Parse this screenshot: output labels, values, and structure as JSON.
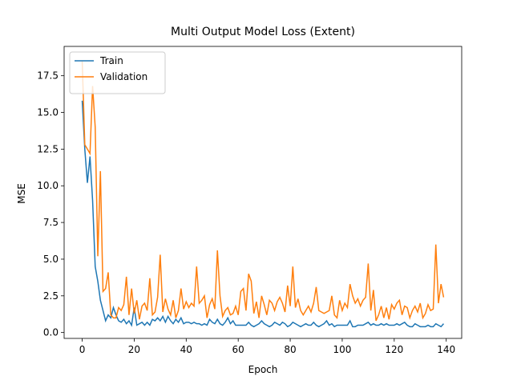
{
  "chart_data": {
    "type": "line",
    "title": "Multi Output Model Loss (Extent)",
    "x_label": "Epoch",
    "y_label": "MSE",
    "x": [
      0,
      1,
      2,
      3,
      4,
      5,
      6,
      7,
      8,
      9,
      10,
      11,
      12,
      13,
      14,
      15,
      16,
      17,
      18,
      19,
      20,
      21,
      22,
      23,
      24,
      25,
      26,
      27,
      28,
      29,
      30,
      31,
      32,
      33,
      34,
      35,
      36,
      37,
      38,
      39,
      40,
      41,
      42,
      43,
      44,
      45,
      46,
      47,
      48,
      49,
      50,
      51,
      52,
      53,
      54,
      55,
      56,
      57,
      58,
      59,
      60,
      61,
      62,
      63,
      64,
      65,
      66,
      67,
      68,
      69,
      70,
      71,
      72,
      73,
      74,
      75,
      76,
      77,
      78,
      79,
      80,
      81,
      82,
      83,
      84,
      85,
      86,
      87,
      88,
      89,
      90,
      91,
      92,
      93,
      94,
      95,
      96,
      97,
      98,
      99,
      100,
      101,
      102,
      103,
      104,
      105,
      106,
      107,
      108,
      109,
      110,
      111,
      112,
      113,
      114,
      115,
      116,
      117,
      118,
      119,
      120,
      121,
      122,
      123,
      124,
      125,
      126,
      127,
      128,
      129,
      130,
      131,
      132,
      133,
      134,
      135,
      136,
      137,
      138,
      139
    ],
    "series": [
      {
        "name": "Train",
        "color": "#1f77b4",
        "values": [
          15.8,
          12.5,
          10.2,
          12.0,
          9.0,
          4.5,
          3.5,
          2.2,
          1.5,
          0.8,
          1.2,
          1.0,
          1.7,
          1.2,
          0.8,
          0.7,
          0.9,
          0.6,
          0.8,
          0.5,
          1.7,
          0.5,
          0.6,
          0.7,
          0.5,
          0.7,
          0.5,
          0.9,
          0.8,
          1.0,
          0.8,
          1.1,
          0.7,
          1.1,
          0.8,
          0.6,
          0.9,
          0.7,
          1.0,
          0.6,
          0.7,
          0.7,
          0.6,
          0.7,
          0.6,
          0.6,
          0.5,
          0.6,
          0.5,
          0.9,
          0.7,
          0.6,
          0.9,
          0.6,
          0.5,
          0.7,
          1.0,
          0.6,
          0.8,
          0.5,
          0.5,
          0.5,
          0.5,
          0.5,
          0.7,
          0.5,
          0.4,
          0.5,
          0.6,
          0.8,
          0.6,
          0.5,
          0.4,
          0.5,
          0.7,
          0.6,
          0.5,
          0.7,
          0.6,
          0.4,
          0.5,
          0.7,
          0.6,
          0.5,
          0.4,
          0.5,
          0.6,
          0.5,
          0.5,
          0.7,
          0.5,
          0.4,
          0.5,
          0.6,
          0.8,
          0.5,
          0.6,
          0.4,
          0.5,
          0.5,
          0.5,
          0.5,
          0.5,
          0.8,
          0.4,
          0.4,
          0.5,
          0.5,
          0.5,
          0.6,
          0.7,
          0.5,
          0.6,
          0.5,
          0.5,
          0.6,
          0.5,
          0.6,
          0.5,
          0.5,
          0.5,
          0.6,
          0.5,
          0.6,
          0.7,
          0.5,
          0.4,
          0.4,
          0.6,
          0.5,
          0.4,
          0.4,
          0.4,
          0.5,
          0.4,
          0.4,
          0.6,
          0.5,
          0.4,
          0.6
        ]
      },
      {
        "name": "Validation",
        "color": "#ff7f0e",
        "values": [
          18.5,
          12.8,
          12.5,
          12.2,
          16.8,
          14.0,
          5.2,
          11.0,
          2.8,
          3.0,
          4.1,
          1.2,
          1.0,
          1.0,
          1.7,
          1.5,
          1.9,
          3.8,
          1.2,
          3.0,
          1.3,
          2.2,
          0.9,
          1.8,
          2.0,
          1.5,
          3.7,
          1.2,
          1.4,
          2.4,
          5.3,
          1.4,
          2.3,
          1.6,
          1.2,
          2.2,
          1.0,
          1.5,
          3.0,
          1.6,
          2.1,
          1.7,
          2.0,
          1.8,
          4.5,
          2.0,
          2.2,
          2.5,
          1.0,
          1.9,
          2.3,
          1.6,
          5.6,
          2.5,
          1.1,
          1.5,
          1.7,
          1.2,
          1.3,
          1.8,
          1.2,
          2.8,
          3.0,
          1.5,
          4.0,
          3.5,
          1.3,
          2.1,
          1.0,
          2.5,
          1.9,
          1.2,
          2.2,
          2.0,
          1.5,
          2.1,
          2.4,
          2.0,
          1.4,
          3.2,
          1.8,
          4.5,
          1.7,
          2.3,
          1.5,
          1.2,
          1.5,
          1.8,
          1.4,
          2.0,
          3.1,
          1.5,
          1.4,
          1.3,
          1.4,
          1.5,
          2.5,
          1.2,
          1.0,
          2.2,
          1.5,
          2.0,
          1.7,
          3.3,
          2.5,
          2.0,
          2.3,
          1.8,
          2.2,
          2.4,
          4.7,
          1.5,
          2.9,
          0.8,
          1.2,
          1.8,
          1.0,
          1.7,
          0.9,
          1.9,
          1.6,
          2.0,
          2.2,
          1.2,
          1.8,
          1.7,
          1.0,
          1.5,
          1.8,
          1.4,
          2.0,
          1.0,
          1.3,
          1.9,
          1.5,
          1.6,
          6.0,
          2.0,
          3.3,
          2.4
        ]
      }
    ],
    "xlim": [
      -6.95,
      145.95
    ],
    "ylim": [
      -0.4,
      19.5
    ],
    "xticks": [
      0,
      20,
      40,
      60,
      80,
      100,
      120,
      140
    ],
    "yticks": [
      {
        "value": 0,
        "label": "0.0"
      },
      2.5,
      {
        "value": 5,
        "label": "5.0"
      },
      7.5,
      {
        "value": 10,
        "label": "10.0"
      },
      12.5,
      {
        "value": 15,
        "label": "15.0"
      },
      17.5
    ],
    "legend": "upper left"
  }
}
